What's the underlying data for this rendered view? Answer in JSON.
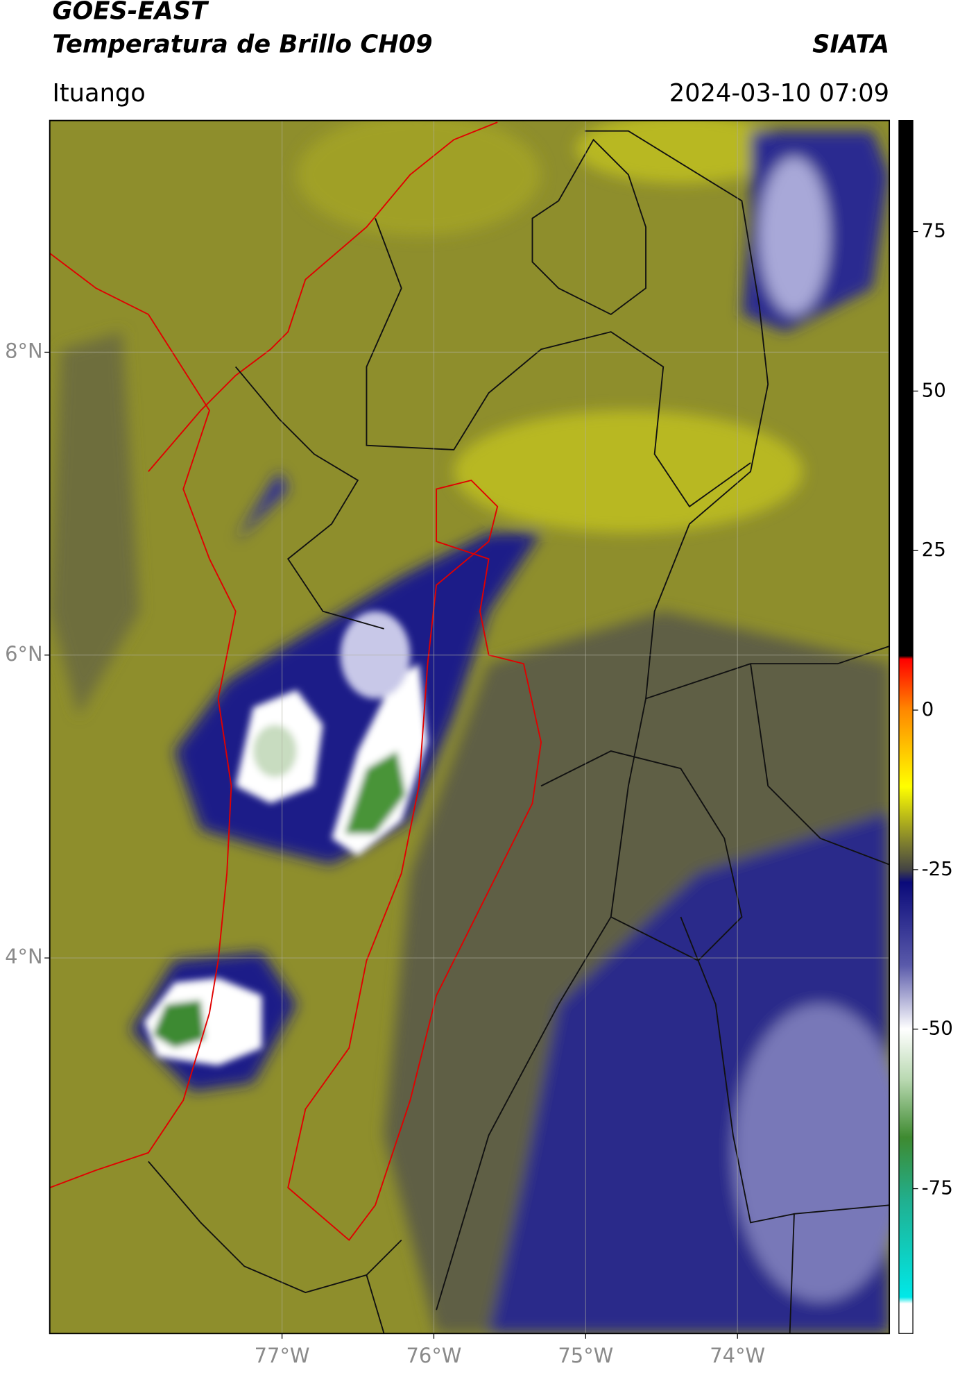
{
  "header": {
    "title": "GOES-EAST",
    "subtitle": "Temperatura de Brillo CH09",
    "agency": "SIATA",
    "location": "Ituango",
    "datetime": "2024-03-10 07:09"
  },
  "map": {
    "latlim": [
      1.52,
      9.53
    ],
    "lonlim": [
      -78.53,
      -73.0
    ],
    "lat_ticks": [
      {
        "value": 8,
        "label": "8°N"
      },
      {
        "value": 6,
        "label": "6°N"
      },
      {
        "value": 4,
        "label": "4°N"
      }
    ],
    "lon_ticks": [
      {
        "value": -77,
        "label": "77°W"
      },
      {
        "value": -76,
        "label": "76°W"
      },
      {
        "value": -75,
        "label": "75°W"
      },
      {
        "value": -74,
        "label": "74°W"
      }
    ]
  },
  "colorbar": {
    "lim": [
      -97.7,
      92.4
    ],
    "ticks": [
      75,
      50,
      25,
      0,
      -25,
      -50,
      -75
    ],
    "stops": [
      {
        "value": 92.4,
        "color": "#000000"
      },
      {
        "value": 8.5,
        "color": "#000000"
      },
      {
        "value": 8,
        "color": "#ff0000"
      },
      {
        "value": 0,
        "color": "#ff8800"
      },
      {
        "value": -12,
        "color": "#ffff00"
      },
      {
        "value": -20,
        "color": "#8a8a2a"
      },
      {
        "value": -25,
        "color": "#444444"
      },
      {
        "value": -27,
        "color": "#0a0a7a"
      },
      {
        "value": -40,
        "color": "#5a5aaa"
      },
      {
        "value": -50,
        "color": "#ffffff"
      },
      {
        "value": -58,
        "color": "#b8d8b0"
      },
      {
        "value": -67,
        "color": "#3e8a30"
      },
      {
        "value": -77,
        "color": "#20b090"
      },
      {
        "value": -92,
        "color": "#00e8e8"
      },
      {
        "value": -93,
        "color": "#ffffff"
      },
      {
        "value": -97.7,
        "color": "#ffffff"
      }
    ]
  }
}
